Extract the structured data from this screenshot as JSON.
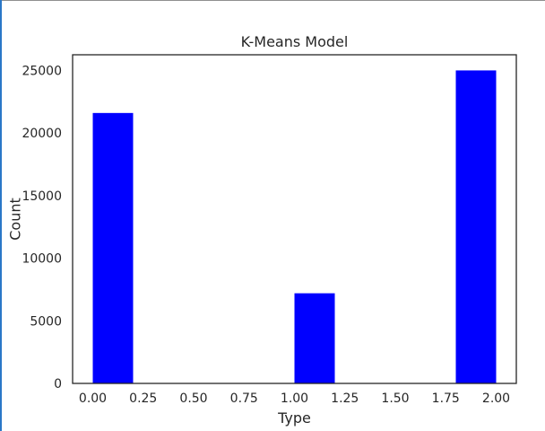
{
  "chart_data": {
    "type": "bar",
    "title": "K-Means Model",
    "xlabel": "Type",
    "ylabel": "Count",
    "xlim": [
      -0.1,
      2.1
    ],
    "ylim": [
      0,
      26250
    ],
    "xticks": [
      "0.00",
      "0.25",
      "0.50",
      "0.75",
      "1.00",
      "1.25",
      "1.50",
      "1.75",
      "2.00"
    ],
    "yticks": [
      "0",
      "5000",
      "10000",
      "15000",
      "20000",
      "25000"
    ],
    "bin_width": 0.2,
    "bars": [
      {
        "x_start": 0.0,
        "x_end": 0.2,
        "value": 21600
      },
      {
        "x_start": 1.0,
        "x_end": 1.2,
        "value": 7200
      },
      {
        "x_start": 1.8,
        "x_end": 2.0,
        "value": 25000
      }
    ],
    "bar_color": "#0000ff",
    "grid": false,
    "legend": "none"
  }
}
